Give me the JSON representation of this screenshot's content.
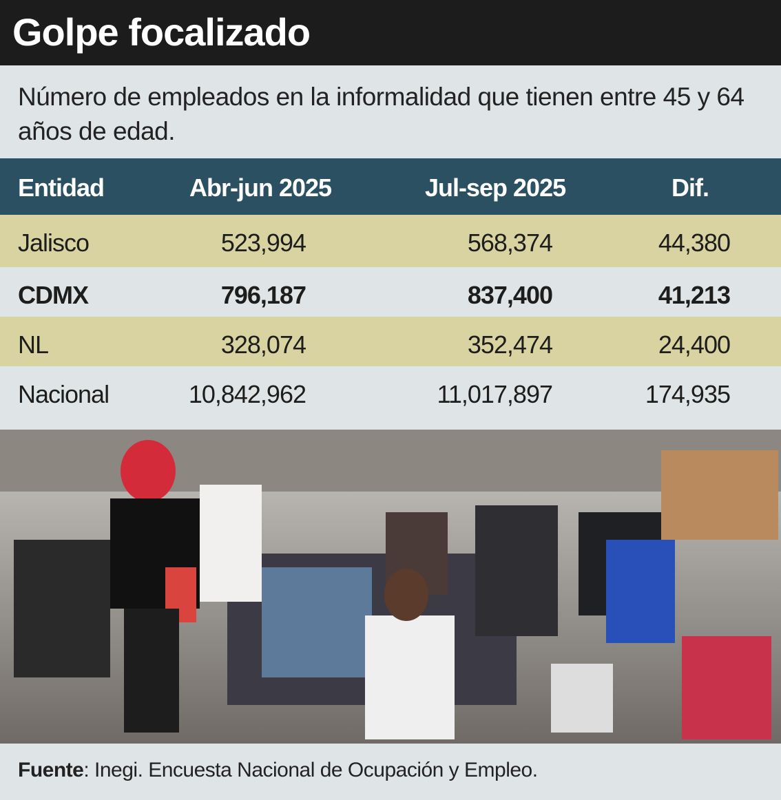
{
  "header": {
    "title": "Golpe focalizado",
    "subtitle": "Número de empleados en la informalidad que tienen entre 45 y 64 años de edad."
  },
  "table": {
    "columns": [
      "Entidad",
      "Abr-jun 2025",
      "Jul-sep 2025",
      "Dif."
    ],
    "rows": [
      [
        "Jalisco",
        "523,994",
        "568,374",
        "44,380"
      ],
      [
        "CDMX",
        "796,187",
        "837,400",
        "41,213"
      ],
      [
        "NL",
        "328,074",
        "352,474",
        "24,400"
      ],
      [
        "Nacional",
        "10,842,962",
        "11,017,897",
        "174,935"
      ]
    ]
  },
  "footer": {
    "label": "Fuente",
    "text": ": Inegi. Encuesta Nacional de Ocupación y Empleo."
  }
}
